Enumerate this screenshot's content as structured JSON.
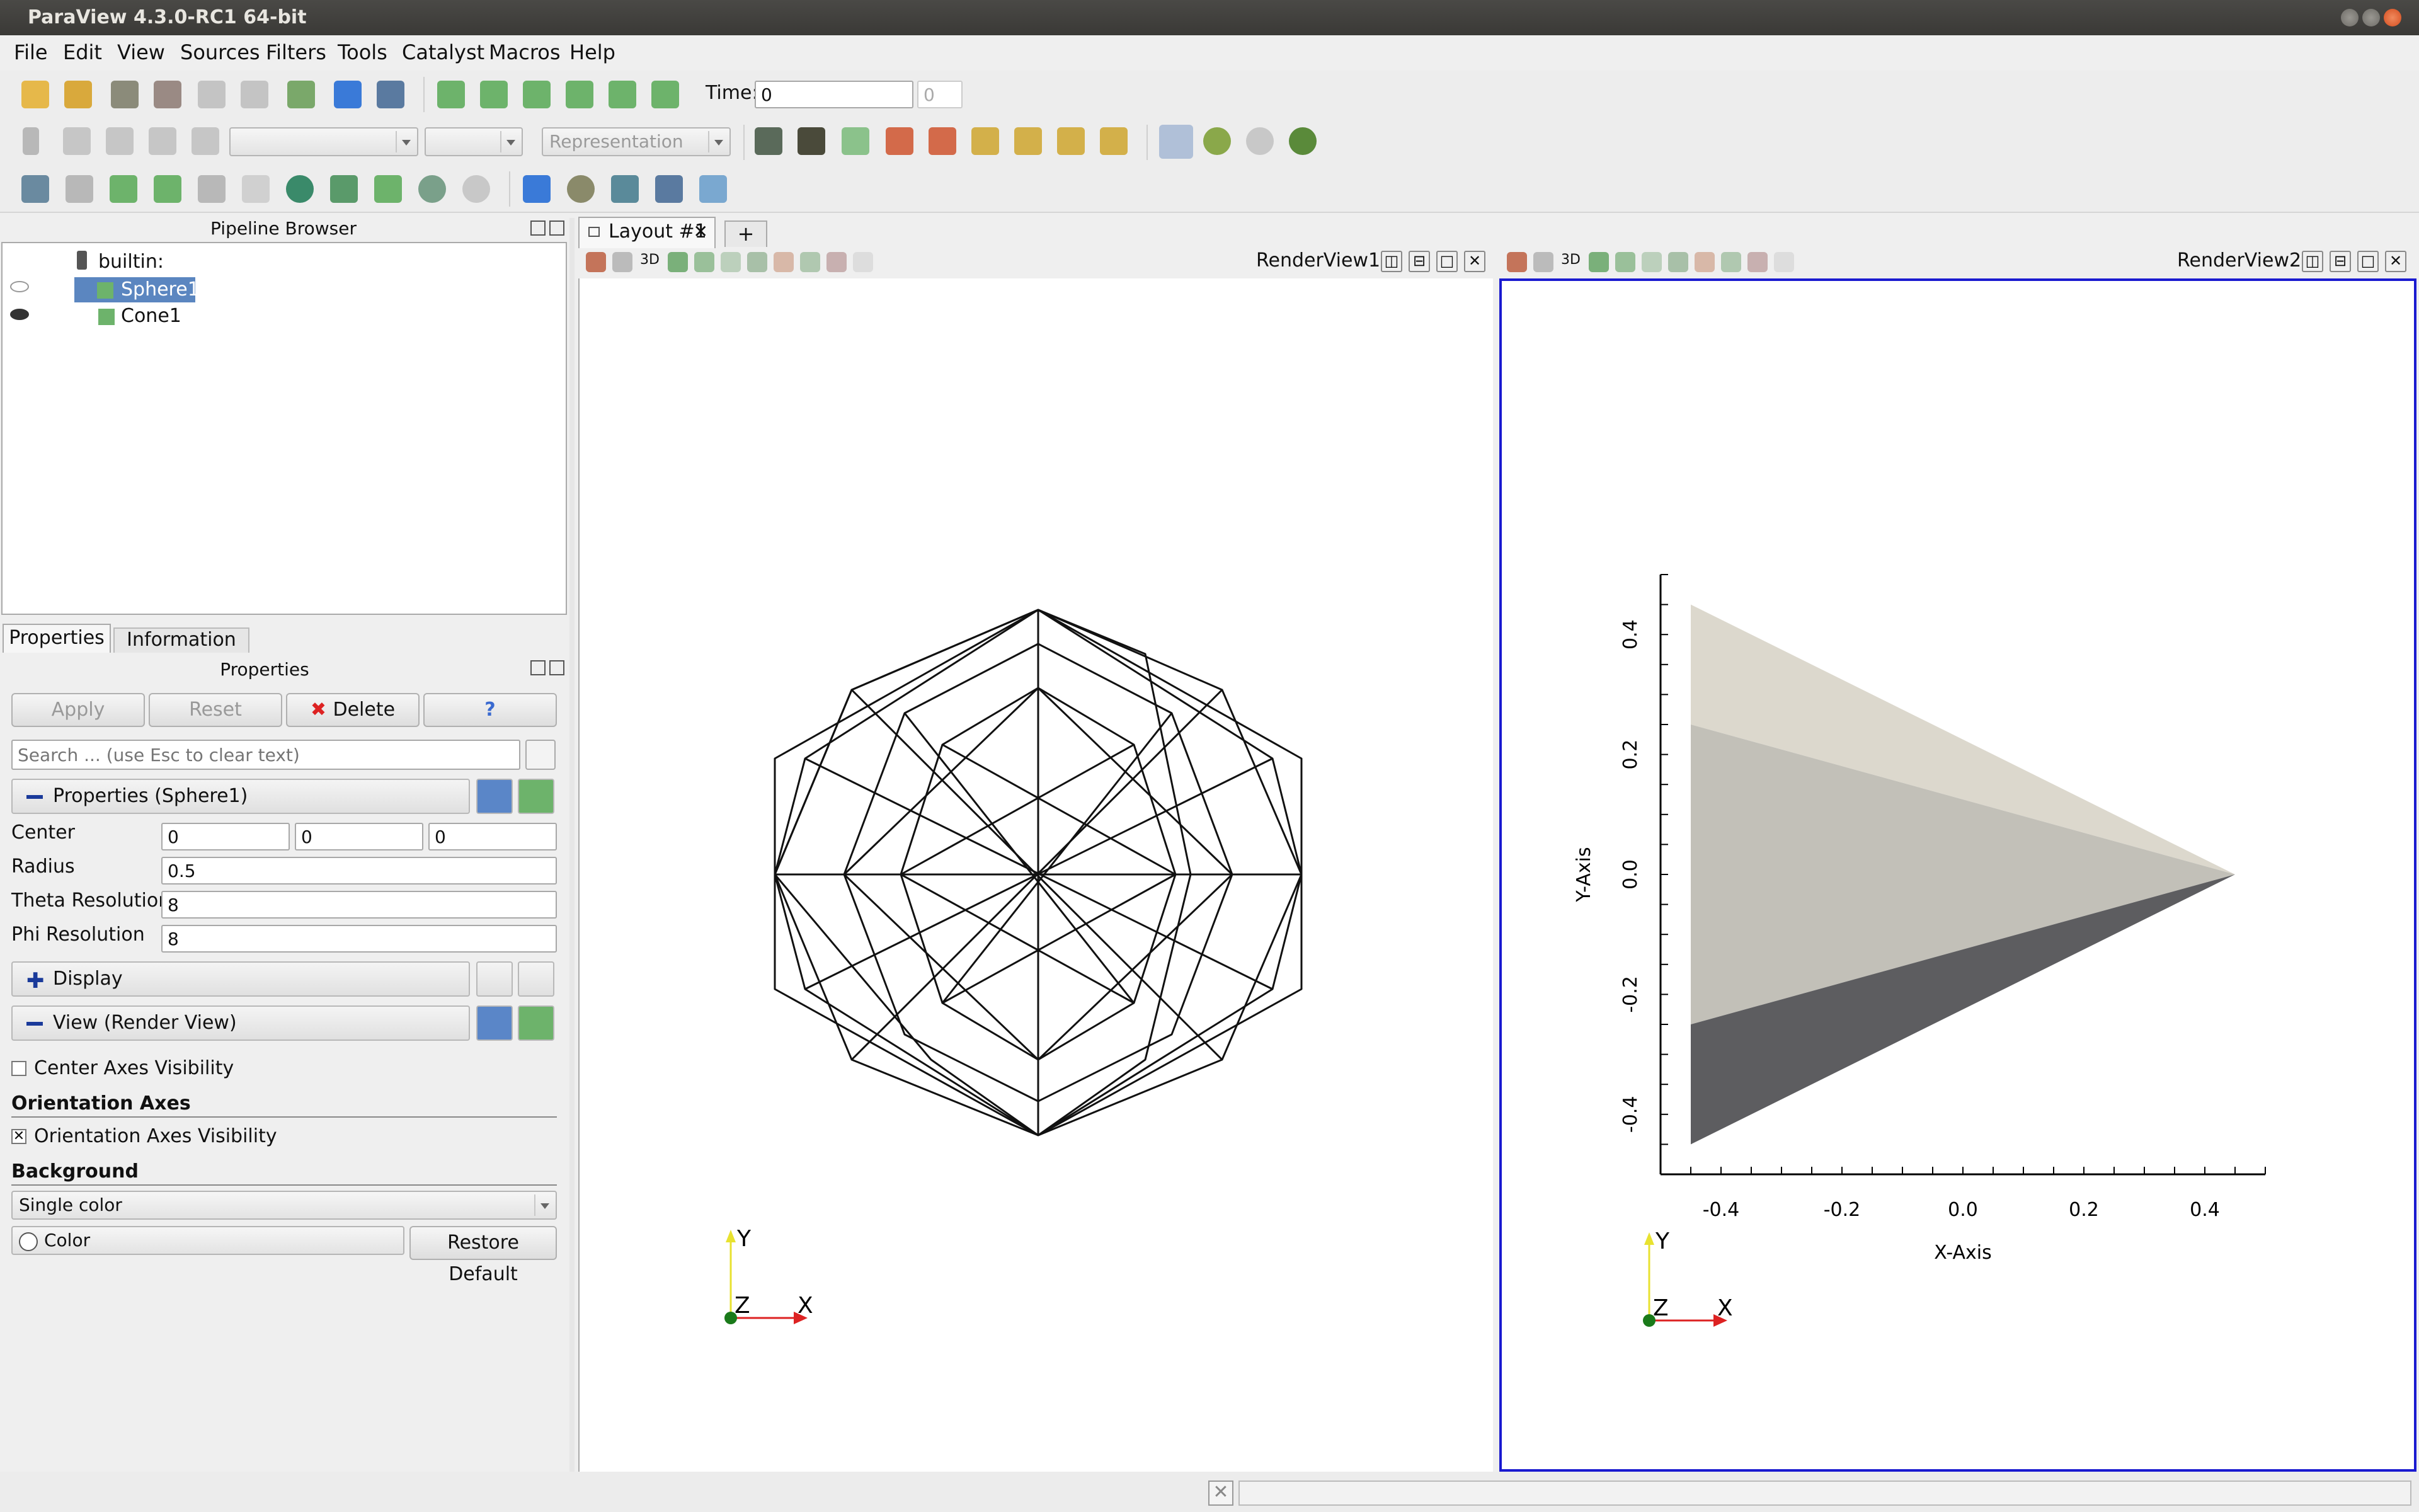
{
  "window": {
    "title": "ParaView 4.3.0-RC1 64-bit"
  },
  "menubar": {
    "items": [
      "File",
      "Edit",
      "View",
      "Sources",
      "Filters",
      "Tools",
      "Catalyst",
      "Macros",
      "Help"
    ]
  },
  "toolbar": {
    "time_label": "Time:",
    "time_value": "0",
    "time_index": "0",
    "representation": "Representation"
  },
  "pipeline": {
    "title": "Pipeline Browser",
    "items": [
      {
        "label": "builtin:"
      },
      {
        "label": "Sphere1",
        "selected": true
      },
      {
        "label": "Cone1"
      }
    ]
  },
  "tabs": {
    "properties": "Properties",
    "information": "Information"
  },
  "properties": {
    "title": "Properties",
    "apply": "Apply",
    "reset": "Reset",
    "delete": "Delete",
    "help": "?",
    "search_placeholder": "Search ... (use Esc to clear text)",
    "section_sphere": "Properties (Sphere1)",
    "center_label": "Center",
    "center": [
      "0",
      "0",
      "0"
    ],
    "radius_label": "Radius",
    "radius": "0.5",
    "theta_label": "Theta Resolution",
    "theta": "8",
    "phi_label": "Phi Resolution",
    "phi": "8",
    "section_display": "Display",
    "section_view": "View (Render View)",
    "center_axes_label": "Center Axes Visibility",
    "orientation_heading": "Orientation Axes",
    "orientation_visibility_label": "Orientation Axes Visibility",
    "background_heading": "Background",
    "background_mode": "Single color",
    "color_label": "Color",
    "restore_default": "Restore Default"
  },
  "layout": {
    "tab_label": "Layout #1",
    "add_tab": "+"
  },
  "views": {
    "view1": {
      "title": "RenderView1",
      "mode": "3D"
    },
    "view2": {
      "title": "RenderView2",
      "mode": "3D"
    }
  },
  "orientation_axes": {
    "x": "X",
    "y": "Y",
    "z": "Z"
  },
  "chart_data": {
    "type": "scatter",
    "title": "",
    "xlabel": "X-Axis",
    "ylabel": "Y-Axis",
    "xlim": [
      -0.5,
      0.5
    ],
    "ylim": [
      -0.5,
      0.5
    ],
    "x_ticks": [
      "-0.4",
      "-0.2",
      "0.0",
      "0.2",
      "0.4"
    ],
    "y_ticks": [
      "0.4",
      "0.2",
      "0.0",
      "-0.2",
      "-0.4"
    ],
    "series": [
      {
        "values": [
          [
            -0.45,
            0.45
          ],
          [
            0.45,
            0.0
          ],
          [
            -0.45,
            0.25
          ]
        ],
        "color": "#dcd8cd"
      },
      {
        "values": [
          [
            -0.45,
            0.25
          ],
          [
            0.45,
            0.0
          ],
          [
            -0.45,
            -0.25
          ]
        ],
        "color": "#c2c0b8"
      },
      {
        "values": [
          [
            -0.45,
            -0.25
          ],
          [
            0.45,
            0.0
          ],
          [
            -0.45,
            -0.45
          ]
        ],
        "color": "#5d5d60"
      }
    ]
  }
}
